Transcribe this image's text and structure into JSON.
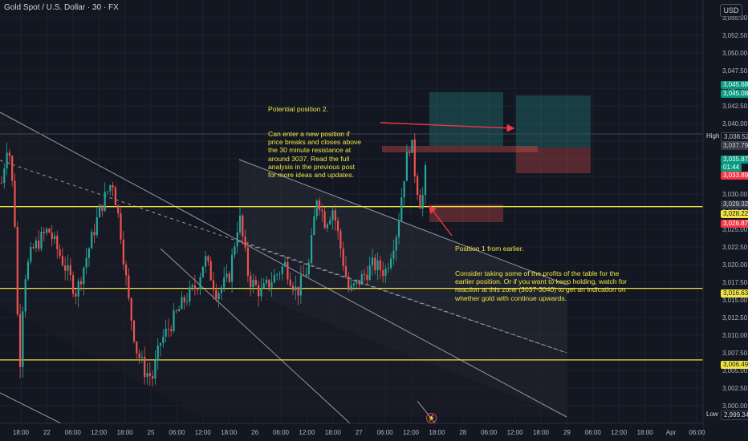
{
  "header": {
    "symbol_title": "Gold Spot / U.S. Dollar · 30 · FX",
    "currency": "USD"
  },
  "chart_data": {
    "type": "candlestick",
    "y_range": [
      2997.5,
      3057.5
    ],
    "y_ticks": [
      "3,055.00",
      "3,052.50",
      "3,050.00",
      "3,047.50",
      "3,045.00",
      "3,042.50",
      "3,040.00",
      "3,037.50",
      "3,035.00",
      "3,032.50",
      "3,030.00",
      "3,027.50",
      "3,025.00",
      "3,022.50",
      "3,020.00",
      "3,017.50",
      "3,015.00",
      "3,012.50",
      "3,010.00",
      "3,007.50",
      "3,005.00",
      "3,002.50",
      "3,000.00"
    ],
    "x_labels": [
      "18:00",
      "22",
      "06:00",
      "12:00",
      "18:00",
      "25",
      "06:00",
      "12:00",
      "18:00",
      "26",
      "06:00",
      "12:00",
      "18:00",
      "27",
      "06:00",
      "12:00",
      "18:00",
      "28",
      "06:00",
      "12:00",
      "18:00",
      "29",
      "06:00",
      "12:00",
      "18:00",
      "Apr",
      "06:00"
    ],
    "horizontal_levels": [
      3028.22,
      3016.63,
      3006.49
    ],
    "price_tags": [
      {
        "value": "3,045.68",
        "kind": "target"
      },
      {
        "value": "3,045.08",
        "kind": "target"
      },
      {
        "value": "3,038.52",
        "kind": "high",
        "label": "High"
      },
      {
        "value": "3,037.79",
        "kind": "neutral"
      },
      {
        "value": "3,035.87",
        "kind": "last"
      },
      {
        "value": "01:44",
        "kind": "last"
      },
      {
        "value": "3,033.89",
        "kind": "stop"
      },
      {
        "value": "3,029.32",
        "kind": "neutral"
      },
      {
        "value": "3,028.22",
        "kind": "level"
      },
      {
        "value": "3,026.87",
        "kind": "stop"
      },
      {
        "value": "3,016.63",
        "kind": "level"
      },
      {
        "value": "3,006.49",
        "kind": "level"
      },
      {
        "value": "2,999.34",
        "kind": "low",
        "label": "Low"
      }
    ],
    "colors": {
      "up": "#26a69a",
      "down": "#ef5350",
      "level": "#f0e442",
      "target_zone": "#26a69a",
      "stop_zone": "#ef5350",
      "grid": "#1e222d"
    }
  },
  "annotations": {
    "position2_title": "Potential position 2.",
    "position2_body": "Can enter a new position if price breaks and closes above the 30 minute resistance at around 3037. Read the full analysis in the previous post for more ideas and updates.",
    "position1_title": "Position 1 from earlier.",
    "position1_body": "Consider taking some of the profits of the table for the earlier position. Or if you want to keep holding, watch for reaction at this zone (3037-3040) to get an indication on whether gold with continue upwards."
  },
  "icons": {
    "flash": "lightning-icon"
  }
}
